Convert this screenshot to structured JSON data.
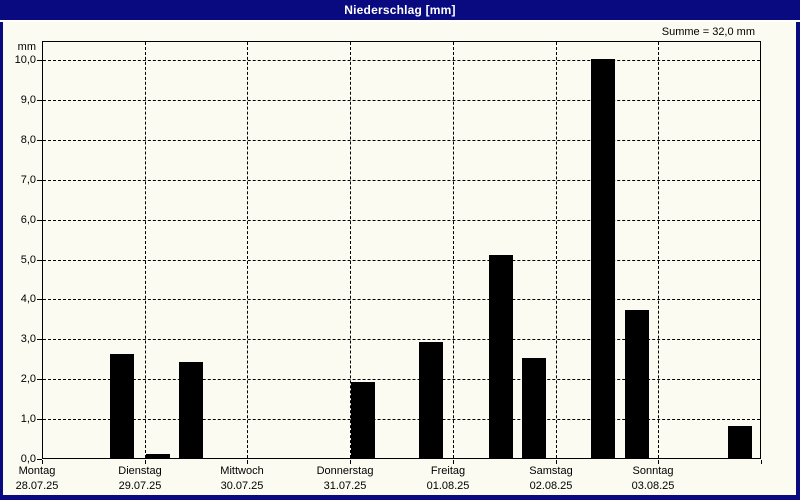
{
  "window": {
    "title": "Niederschlag [mm]"
  },
  "summary": "Summe = 32,0 mm",
  "colors": {
    "titlebar_bg": "#0A0A80",
    "titlebar_text": "#FFFFFF",
    "background": "#FBFBF1",
    "bar_color": "#000000",
    "grid_color": "#000000"
  },
  "chart_data": {
    "type": "bar",
    "title": "Niederschlag [mm]",
    "unit_label": "mm",
    "sum_label": "Summe = 32,0 mm",
    "sum_value_mm": 32.0,
    "ylim": [
      0,
      10.45
    ],
    "grid": "dashed",
    "y_ticks": [
      {
        "value": 0,
        "label": "0,0"
      },
      {
        "value": 1,
        "label": "1,0"
      },
      {
        "value": 2,
        "label": "2,0"
      },
      {
        "value": 3,
        "label": "3,0"
      },
      {
        "value": 4,
        "label": "4,0"
      },
      {
        "value": 5,
        "label": "5,0"
      },
      {
        "value": 6,
        "label": "6,0"
      },
      {
        "value": 7,
        "label": "7,0"
      },
      {
        "value": 8,
        "label": "8,0"
      },
      {
        "value": 9,
        "label": "9,0"
      },
      {
        "value": 10,
        "label": "10,0"
      }
    ],
    "days": [
      {
        "name": "Montag",
        "date": "28.07.25"
      },
      {
        "name": "Dienstag",
        "date": "29.07.25"
      },
      {
        "name": "Mittwoch",
        "date": "30.07.25"
      },
      {
        "name": "Donnerstag",
        "date": "31.07.25"
      },
      {
        "name": "Freitag",
        "date": "01.08.25"
      },
      {
        "name": "Samstag",
        "date": "02.08.25"
      },
      {
        "name": "Sonntag",
        "date": "03.08.25"
      }
    ],
    "bars": [
      {
        "day_index": 0,
        "day": "Montag",
        "date": "28.07.25",
        "value": 2.6,
        "day_fraction": 0.662
      },
      {
        "day_index": 1,
        "day": "Dienstag",
        "date": "29.07.25",
        "value": 0.1,
        "day_fraction": 0.013
      },
      {
        "day_index": 1,
        "day": "Dienstag",
        "date": "29.07.25",
        "value": 2.4,
        "day_fraction": 0.334
      },
      {
        "day_index": 3,
        "day": "Donnerstag",
        "date": "31.07.25",
        "value": 1.9,
        "day_fraction": 0.008
      },
      {
        "day_index": 3,
        "day": "Donnerstag",
        "date": "31.07.25",
        "value": 2.9,
        "day_fraction": 0.67
      },
      {
        "day_index": 4,
        "day": "Freitag",
        "date": "01.08.25",
        "value": 5.1,
        "day_fraction": 0.352
      },
      {
        "day_index": 4,
        "day": "Freitag",
        "date": "01.08.25",
        "value": 2.5,
        "day_fraction": 0.673
      },
      {
        "day_index": 5,
        "day": "Samstag",
        "date": "02.08.25",
        "value": 10.0,
        "day_fraction": 0.345
      },
      {
        "day_index": 5,
        "day": "Samstag",
        "date": "02.08.25",
        "value": 3.7,
        "day_fraction": 0.676
      },
      {
        "day_index": 6,
        "day": "Sonntag",
        "date": "03.08.25",
        "value": 0.8,
        "day_fraction": 0.679
      }
    ]
  }
}
